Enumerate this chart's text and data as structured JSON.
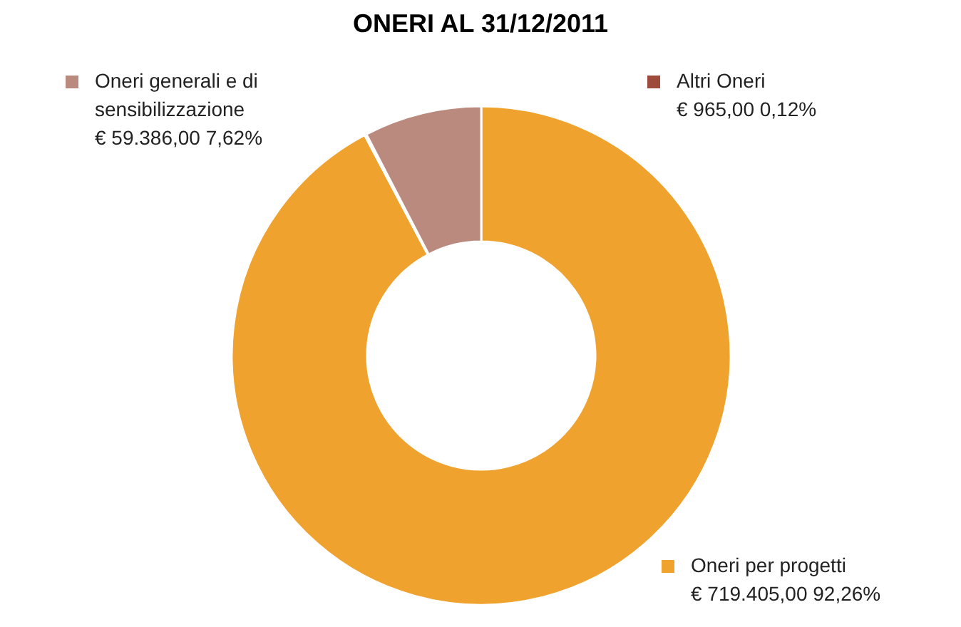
{
  "chart_data": {
    "type": "donut",
    "title": "ONERI AL 31/12/2011",
    "categories": [
      "Oneri per progetti",
      "Altri Oneri",
      "Oneri generali e di sensibilizzazione"
    ],
    "values": [
      719405,
      965,
      59386
    ],
    "legend": "top",
    "colors": [
      "#f0a22e",
      "#9e4b3c",
      "#b98a7d"
    ],
    "value_labels": [
      "€ 719.405,00  92,26%",
      "€ 965,00  0,12%",
      "€ 59.386,00  7,62%"
    ]
  }
}
